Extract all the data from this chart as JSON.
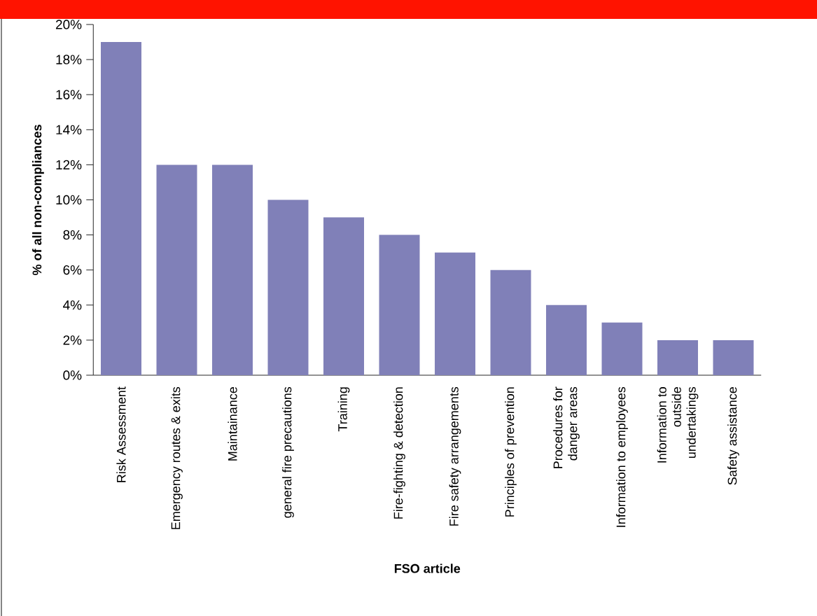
{
  "chart_data": {
    "type": "bar",
    "xlabel": "FSO article",
    "ylabel": "% of all non-compliances",
    "categories": [
      "Risk Assessment",
      "Emergency routes & exits",
      "Maintainance",
      "general fire precautions",
      "Training",
      "Fire-fighting & detection",
      "Fire safety arrangements",
      "Principles of prevention",
      "Procedures for danger areas",
      "Information to employees",
      "Information to outside undertakings",
      "Safety assistance"
    ],
    "values": [
      19,
      12,
      12,
      10,
      9,
      8,
      7,
      6,
      4,
      3,
      2,
      2
    ],
    "color": "#8080b8",
    "ylim": [
      0,
      20
    ],
    "yticks": [
      {
        "value": 0,
        "label": "0%"
      },
      {
        "value": 2,
        "label": "2%"
      },
      {
        "value": 4,
        "label": "4%"
      },
      {
        "value": 6,
        "label": "6%"
      },
      {
        "value": 8,
        "label": "8%"
      },
      {
        "value": 10,
        "label": "10%"
      },
      {
        "value": 12,
        "label": "12%"
      },
      {
        "value": 14,
        "label": "14%"
      },
      {
        "value": 16,
        "label": "16%"
      },
      {
        "value": 18,
        "label": "18%"
      },
      {
        "value": 20,
        "label": "20%"
      }
    ],
    "grid": false
  }
}
